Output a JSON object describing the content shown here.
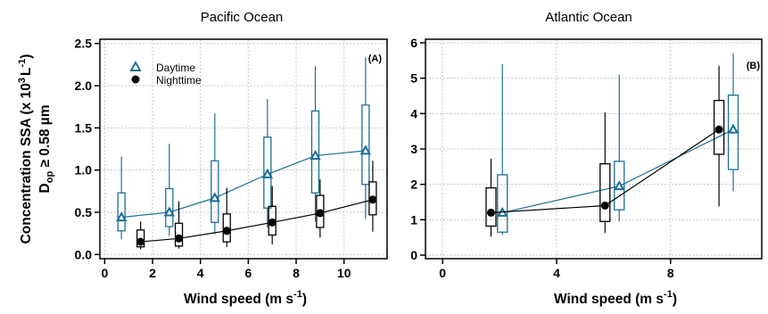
{
  "chart_data": [
    {
      "type": "box",
      "panel": "(A)",
      "title": "Pacific Ocean",
      "xlabel": {
        "main": "Wind speed (m s",
        "sup": "-1",
        "close": ")"
      },
      "ylabel": {
        "line1": {
          "main": "Concentration SSA (x 10",
          "sup1": "3",
          "mid": "L",
          "sup2": "-1",
          "close": ")"
        },
        "line2": {
          "main": "D",
          "sub": "op",
          "rest": " ≥ 0.58 µm"
        }
      },
      "xlim": [
        -0.2,
        11.8
      ],
      "ylim": [
        -0.05,
        2.55
      ],
      "xticks": [
        0,
        2,
        4,
        6,
        8,
        10
      ],
      "xtick_labels": [
        "0",
        "2",
        "4",
        "6",
        "8",
        "10"
      ],
      "yticks": [
        0.0,
        0.5,
        1.0,
        1.5,
        2.0,
        2.5
      ],
      "ytick_labels": [
        "0.0",
        "0.5",
        "1.0",
        "1.5",
        "2.0",
        "2.5"
      ],
      "grid": true,
      "legend": {
        "position": "top-left",
        "entries": [
          "Daytime",
          "Nighttime"
        ]
      },
      "series": [
        {
          "name": "Daytime",
          "color": "#1a6e96",
          "marker": "triangle-open",
          "x": [
            0.7,
            2.7,
            4.6,
            6.8,
            8.8,
            10.9
          ],
          "mean": [
            0.44,
            0.5,
            0.67,
            0.95,
            1.17,
            1.23
          ],
          "q1": [
            0.28,
            0.33,
            0.38,
            0.55,
            0.73,
            0.83
          ],
          "q3": [
            0.73,
            0.78,
            1.11,
            1.39,
            1.7,
            1.77
          ],
          "low": [
            0.18,
            0.22,
            0.24,
            0.32,
            0.39,
            0.42
          ],
          "high": [
            1.16,
            1.31,
            1.67,
            1.84,
            2.23,
            2.34
          ]
        },
        {
          "name": "Nighttime",
          "color": "#000000",
          "marker": "circle-filled",
          "x": [
            1.5,
            3.1,
            5.1,
            7.0,
            9.0,
            11.2
          ],
          "mean": [
            0.15,
            0.19,
            0.28,
            0.38,
            0.49,
            0.65
          ],
          "q1": [
            0.09,
            0.1,
            0.15,
            0.23,
            0.32,
            0.47
          ],
          "q3": [
            0.29,
            0.37,
            0.48,
            0.57,
            0.7,
            0.86
          ],
          "low": [
            0.06,
            0.07,
            0.09,
            0.12,
            0.2,
            0.27
          ],
          "high": [
            0.39,
            0.63,
            0.79,
            0.81,
            0.89,
            1.11
          ]
        }
      ]
    },
    {
      "type": "box",
      "panel": "(B)",
      "title": "Atlantic Ocean",
      "xlabel": {
        "main": "Wind speed (m s",
        "sup": "-1",
        "close": ")"
      },
      "xlim": [
        -0.6,
        11.2
      ],
      "ylim": [
        -0.1,
        6.1
      ],
      "xticks": [
        0,
        4,
        8
      ],
      "xtick_labels": [
        "0",
        "4",
        "8"
      ],
      "yticks": [
        0,
        1,
        2,
        3,
        4,
        5,
        6
      ],
      "ytick_labels": [
        "0",
        "1",
        "2",
        "3",
        "4",
        "5",
        "6"
      ],
      "grid": true,
      "series": [
        {
          "name": "Daytime",
          "color": "#1a6e96",
          "marker": "triangle-open",
          "x": [
            2.1,
            6.2,
            10.2
          ],
          "mean": [
            1.2,
            1.95,
            3.55
          ],
          "q1": [
            0.65,
            1.28,
            2.42
          ],
          "q3": [
            2.27,
            2.65,
            4.52
          ],
          "low": [
            0.58,
            0.95,
            1.8
          ],
          "high": [
            5.4,
            5.1,
            5.7
          ]
        },
        {
          "name": "Nighttime",
          "color": "#000000",
          "marker": "circle-filled",
          "x": [
            1.7,
            5.7,
            9.7
          ],
          "mean": [
            1.2,
            1.4,
            3.55
          ],
          "q1": [
            0.82,
            0.95,
            2.85
          ],
          "q3": [
            1.9,
            2.58,
            4.37
          ],
          "low": [
            0.52,
            0.63,
            1.38
          ],
          "high": [
            2.72,
            4.03,
            5.35
          ]
        }
      ]
    }
  ]
}
